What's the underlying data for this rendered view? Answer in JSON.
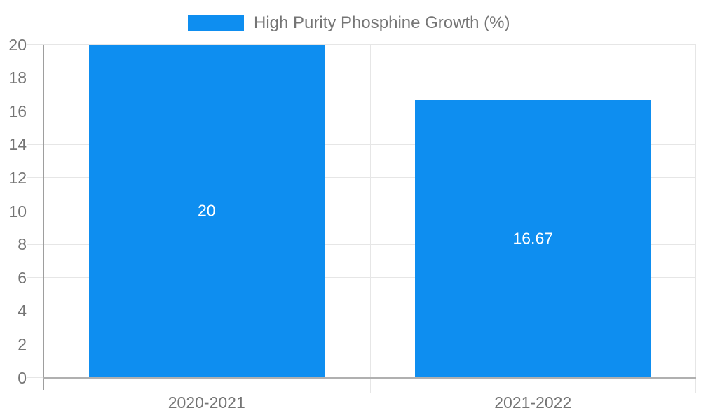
{
  "chart_data": {
    "type": "bar",
    "title": "",
    "legend": {
      "label": "High Purity Phosphine Growth (%)",
      "position": "top"
    },
    "categories": [
      "2020-2021",
      "2021-2022"
    ],
    "series": [
      {
        "name": "High Purity Phosphine Growth (%)",
        "values": [
          20,
          16.67
        ],
        "value_labels": [
          "20",
          "16.67"
        ]
      }
    ],
    "xlabel": "",
    "ylabel": "",
    "ylim": [
      0,
      20
    ],
    "y_ticks": [
      0,
      2,
      4,
      6,
      8,
      10,
      12,
      14,
      16,
      18,
      20
    ],
    "grid": true,
    "colors": {
      "bar": "#0e8ef0",
      "axis_text": "#757575",
      "grid_line": "#e6e6e6",
      "axis_line": "#9e9e9e",
      "baseline": "#b0b0b0",
      "value_label": "#ffffff",
      "background": "#ffffff"
    }
  }
}
